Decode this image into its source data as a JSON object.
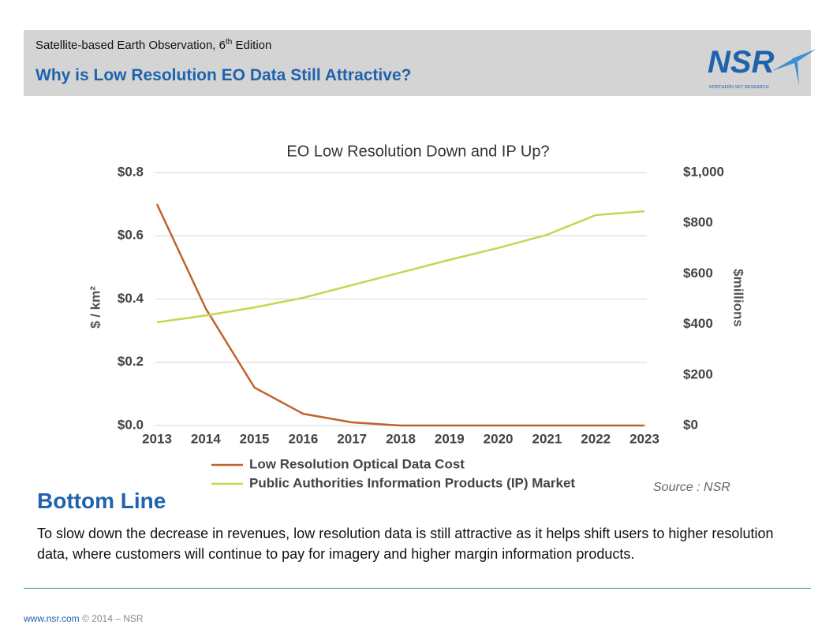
{
  "header": {
    "subtitle_parts": [
      "Satellite-based Earth Observation, 6",
      "th",
      " Edition"
    ],
    "title": "Why is Low Resolution EO Data Still Attractive?",
    "logo": "NSR",
    "logo_tagline": "NORTHERN SKY RESEARCH"
  },
  "chart_data": {
    "type": "line",
    "title": "EO Low Resolution Down and IP Up?",
    "categories": [
      "2013",
      "2014",
      "2015",
      "2016",
      "2017",
      "2018",
      "2019",
      "2020",
      "2021",
      "2022",
      "2023"
    ],
    "series": [
      {
        "name": "Low Resolution Optical Data Cost",
        "color": "#c0622e",
        "values": [
          0.7,
          0.37,
          0.12,
          0.037,
          0.01,
          0,
          0,
          0,
          0,
          0,
          0
        ]
      },
      {
        "name": "Public Authorities Information Products (IP) Market",
        "color": "#c9d54e",
        "axis": "y2",
        "values": [
          408,
          435,
          467,
          505,
          555,
          605,
          655,
          702,
          754,
          832,
          847
        ]
      }
    ],
    "ylabel": "$ / km²",
    "y2label": "$millions",
    "ylim": [
      0,
      0.8
    ],
    "yticks": [
      {
        "value": 0,
        "label": "$0.0"
      },
      {
        "value": 0.2,
        "label": "$0.2"
      },
      {
        "value": 0.4,
        "label": "$0.4"
      },
      {
        "value": 0.6,
        "label": "$0.6"
      },
      {
        "value": 0.8,
        "label": "$0.8"
      }
    ],
    "y2lim": [
      0,
      1000
    ],
    "y2ticks": [
      {
        "value": 0,
        "label": "$0"
      },
      {
        "value": 200,
        "label": "$200"
      },
      {
        "value": 400,
        "label": "$400"
      },
      {
        "value": 600,
        "label": "$600"
      },
      {
        "value": 800,
        "label": "$800"
      },
      {
        "value": 1000,
        "label": "$1,000"
      }
    ],
    "grid": true,
    "legend": "bottom",
    "source": "Source : NSR"
  },
  "bottom_line": {
    "heading": "Bottom Line",
    "text": "To slow down the decrease in revenues, low resolution data is still attractive as it helps shift users to higher resolution data, where customers will continue to pay for imagery and higher margin information products."
  },
  "footer": {
    "url": "www.nsr.com",
    "copyright": "© 2014 – NSR"
  }
}
